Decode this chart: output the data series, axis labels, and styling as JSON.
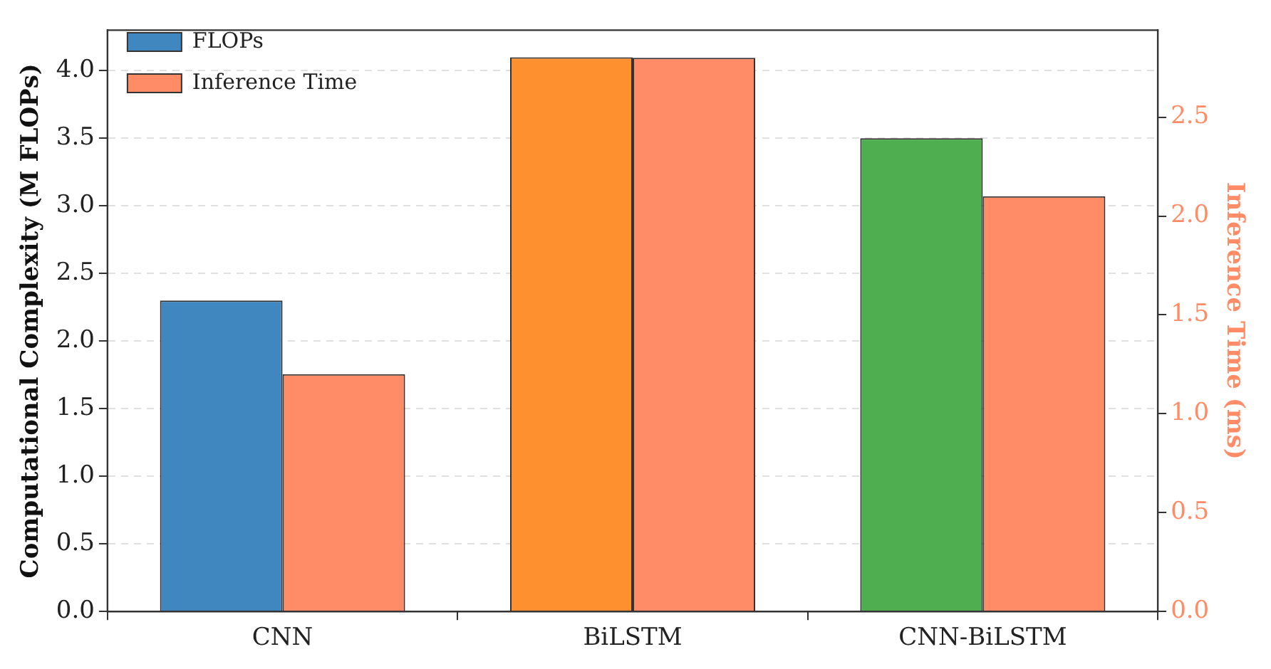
{
  "chart_data": {
    "type": "bar",
    "categories": [
      "CNN",
      "BiLSTM",
      "CNN-BiLSTM"
    ],
    "series": [
      {
        "name": "FLOPs",
        "color": "#4187bf",
        "colors": [
          "#4187bf",
          "#fe9030",
          "#4fae4f"
        ],
        "values": [
          2.3,
          4.1,
          3.5
        ]
      },
      {
        "name": "Inference Time",
        "color": "#ff8c66",
        "axis": "y2",
        "values": [
          1.2,
          2.8,
          2.1
        ]
      }
    ],
    "ylabel": "Computational Complexity (M FLOPs)",
    "y2label": "Inference Time (ms)",
    "ylim": [
      0,
      4.3
    ],
    "yticks": [
      {
        "value": 0,
        "label": "0.0"
      },
      {
        "value": 0.5,
        "label": "0.5"
      },
      {
        "value": 1,
        "label": "1.0"
      },
      {
        "value": 1.5,
        "label": "1.5"
      },
      {
        "value": 2,
        "label": "2.0"
      },
      {
        "value": 2.5,
        "label": "2.5"
      },
      {
        "value": 3,
        "label": "3.0"
      },
      {
        "value": 3.5,
        "label": "3.5"
      },
      {
        "value": 4,
        "label": "4.0"
      }
    ],
    "y2lim": [
      0,
      2.94
    ],
    "y2ticks": [
      {
        "value": 0,
        "label": "0.0"
      },
      {
        "value": 0.5,
        "label": "0.5"
      },
      {
        "value": 1,
        "label": "1.0"
      },
      {
        "value": 1.5,
        "label": "1.5"
      },
      {
        "value": 2,
        "label": "2.0"
      },
      {
        "value": 2.5,
        "label": "2.5"
      }
    ],
    "grid": "y",
    "legend": "top left"
  }
}
